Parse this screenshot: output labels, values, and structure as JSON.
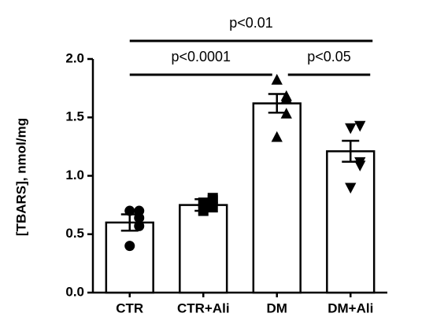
{
  "chart_data": {
    "type": "bar",
    "ylabel": "[TBARS], nmol/mg",
    "categories": [
      "CTR",
      "CTR+Ali",
      "DM",
      "DM+Ali"
    ],
    "values": [
      0.6,
      0.75,
      1.62,
      1.21
    ],
    "errors": [
      0.07,
      0.05,
      0.08,
      0.09
    ],
    "points": [
      [
        0.7,
        0.7,
        0.64,
        0.57,
        0.4
      ],
      [
        0.77,
        0.79,
        0.81,
        0.73,
        0.7
      ],
      [
        1.82,
        1.68,
        1.66,
        1.53,
        1.33
      ],
      [
        1.41,
        1.43,
        1.12,
        1.09,
        0.9
      ]
    ],
    "markers": [
      "circle",
      "square",
      "triangle-up",
      "triangle-down"
    ],
    "color": "#ffffff",
    "edgecolor": "#000000",
    "ylim": [
      0,
      2.0
    ],
    "yticks": [
      {
        "value": 0,
        "label": "0.0"
      },
      0.5,
      {
        "value": 1.0,
        "label": "1.0"
      },
      1.5,
      {
        "value": 2.0,
        "label": "2.0"
      }
    ],
    "annotations": [
      {
        "text": "p<0.01",
        "between": [
          "CTR",
          "DM+Ali"
        ]
      },
      {
        "text": "p<0.0001",
        "between": [
          "CTR",
          "DM"
        ]
      },
      {
        "text": "p<0.05",
        "between": [
          "DM",
          "DM+Ali"
        ]
      }
    ]
  }
}
